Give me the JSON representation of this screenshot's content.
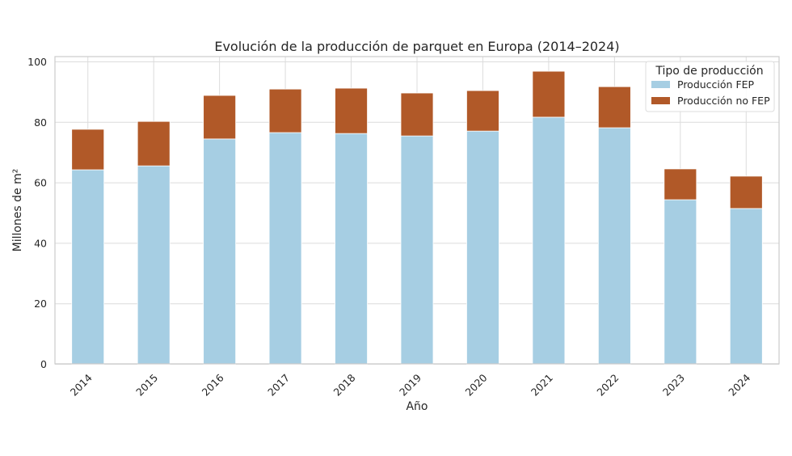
{
  "chart_data": {
    "type": "bar",
    "stacked": true,
    "title": "Evolución de la producción de parquet en Europa (2014–2024)",
    "xlabel": "Año",
    "ylabel": "Millones de m²",
    "ylim": [
      0,
      102
    ],
    "yticks": [
      0,
      20,
      40,
      60,
      80,
      100
    ],
    "grid": true,
    "categories": [
      "2014",
      "2015",
      "2016",
      "2017",
      "2018",
      "2019",
      "2020",
      "2021",
      "2022",
      "2023",
      "2024"
    ],
    "series": [
      {
        "name": "Producción FEP",
        "color": "#a6cee3",
        "values": [
          64.3,
          65.6,
          74.5,
          76.6,
          76.3,
          75.5,
          77.1,
          81.7,
          78.2,
          54.4,
          51.5
        ]
      },
      {
        "name": "Producción no FEP",
        "color": "#b15928",
        "values": [
          13.4,
          14.7,
          14.4,
          14.4,
          15.0,
          14.2,
          13.4,
          15.2,
          13.6,
          10.2,
          10.7
        ]
      }
    ],
    "legend": {
      "title": "Tipo de producción",
      "placement": "top-right"
    }
  }
}
